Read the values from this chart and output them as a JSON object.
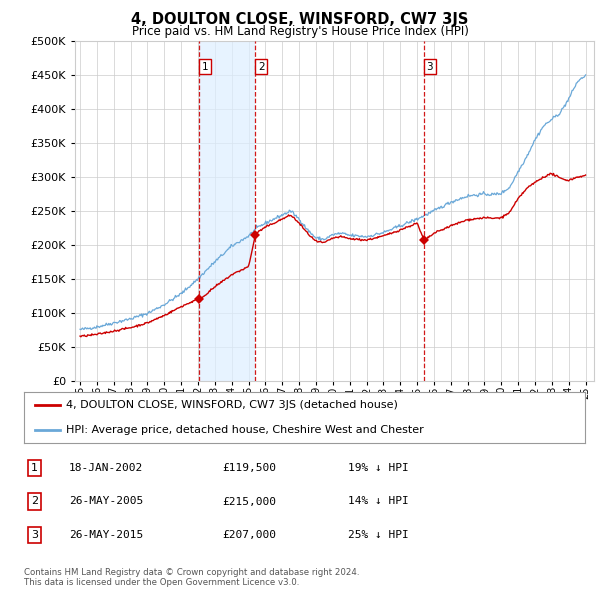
{
  "title": "4, DOULTON CLOSE, WINSFORD, CW7 3JS",
  "subtitle": "Price paid vs. HM Land Registry's House Price Index (HPI)",
  "legend_line1": "4, DOULTON CLOSE, WINSFORD, CW7 3JS (detached house)",
  "legend_line2": "HPI: Average price, detached house, Cheshire West and Chester",
  "footnote": "Contains HM Land Registry data © Crown copyright and database right 2024.\nThis data is licensed under the Open Government Licence v3.0.",
  "table": [
    {
      "num": "1",
      "date": "18-JAN-2002",
      "price": "£119,500",
      "hpi": "19% ↓ HPI"
    },
    {
      "num": "2",
      "date": "26-MAY-2005",
      "price": "£215,000",
      "hpi": "14% ↓ HPI"
    },
    {
      "num": "3",
      "date": "26-MAY-2015",
      "price": "£207,000",
      "hpi": "25% ↓ HPI"
    }
  ],
  "sale_dates": [
    2002.05,
    2005.41,
    2015.41
  ],
  "sale_prices": [
    119500,
    215000,
    207000
  ],
  "hpi_color": "#6aa8d8",
  "price_color": "#cc0000",
  "vline_color": "#cc0000",
  "shade_color": "#ddeeff",
  "grid_color": "#cccccc",
  "bg_color": "#ffffff",
  "ylim": [
    0,
    500000
  ],
  "yticks": [
    0,
    50000,
    100000,
    150000,
    200000,
    250000,
    300000,
    350000,
    400000,
    450000,
    500000
  ],
  "xtick_years": [
    1995,
    1996,
    1997,
    1998,
    1999,
    2000,
    2001,
    2002,
    2003,
    2004,
    2005,
    2006,
    2007,
    2008,
    2009,
    2010,
    2011,
    2012,
    2013,
    2014,
    2015,
    2016,
    2017,
    2018,
    2019,
    2020,
    2021,
    2022,
    2023,
    2024,
    2025
  ],
  "xlim": [
    1994.7,
    2025.5
  ]
}
